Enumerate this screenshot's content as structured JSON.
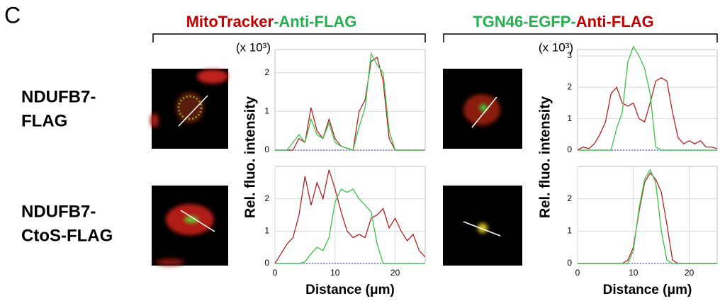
{
  "panel_label": "C",
  "groups": [
    {
      "title_parts": [
        {
          "text": "MitoTracker",
          "color": "#c00000"
        },
        {
          "text": "-Anti-FLAG",
          "color": "#22b14c"
        }
      ]
    },
    {
      "title_parts": [
        {
          "text": "TGN46-EGFP-",
          "color": "#22b14c"
        },
        {
          "text": "Anti-FLAG",
          "color": "#c00000"
        }
      ]
    }
  ],
  "rows": [
    [
      "NDUFB7-",
      "FLAG"
    ],
    [
      "NDUFB7-",
      "CtoS-FLAG"
    ]
  ],
  "y_label": "Rel. fluo. intensity",
  "chart_data": [
    {
      "type": "line",
      "y_unit": "(x 10³)",
      "xlim": [
        0,
        25
      ],
      "ylim": [
        0,
        2.6
      ],
      "yticks": [
        0,
        1,
        2
      ],
      "grid": true,
      "x": [
        0,
        1,
        2,
        3,
        4,
        5,
        6,
        7,
        8,
        9,
        10,
        11,
        12,
        13,
        14,
        15,
        16,
        17,
        18,
        19,
        20,
        21,
        22,
        23,
        24,
        25
      ],
      "series": [
        {
          "color": "#b22222",
          "values": [
            0,
            0,
            0,
            0,
            0.3,
            0.2,
            1.1,
            0.5,
            0.3,
            0.8,
            0.3,
            0.1,
            0.05,
            0,
            1.0,
            1.3,
            2.3,
            2.4,
            1.8,
            0.3,
            0,
            0,
            0,
            0,
            0,
            0
          ]
        },
        {
          "color": "#3cc24a",
          "values": [
            0,
            0,
            0,
            0.2,
            0.4,
            0.2,
            0.8,
            0.4,
            0.3,
            0.7,
            0.2,
            0.1,
            0.05,
            0,
            0.6,
            1.1,
            2.5,
            2.2,
            2.0,
            0.5,
            0,
            0,
            0,
            0,
            0,
            0
          ]
        }
      ]
    },
    {
      "type": "line",
      "y_unit": "(x 10³)",
      "xlim": [
        0,
        25
      ],
      "ylim": [
        0,
        3.2
      ],
      "yticks": [
        0,
        1,
        2,
        3
      ],
      "grid": true,
      "x": [
        0,
        1,
        2,
        3,
        4,
        5,
        6,
        7,
        8,
        9,
        10,
        11,
        12,
        13,
        14,
        15,
        16,
        17,
        18,
        19,
        20,
        21,
        22,
        23,
        24,
        25
      ],
      "series": [
        {
          "color": "#b22222",
          "values": [
            0,
            0.1,
            0.05,
            0.2,
            0.5,
            0.9,
            1.8,
            2.0,
            1.5,
            1.4,
            1.5,
            1.0,
            0.9,
            1.5,
            2.2,
            2.3,
            2.2,
            1.2,
            0.4,
            0.2,
            0.3,
            0.2,
            0.3,
            0.1,
            0.1,
            0.05
          ]
        },
        {
          "color": "#3cc24a",
          "values": [
            0,
            0,
            0,
            0,
            0,
            0,
            0,
            0.7,
            1.2,
            2.8,
            3.3,
            3.0,
            2.6,
            1.8,
            0.1,
            0,
            0,
            0,
            0,
            0,
            0,
            0,
            0,
            0,
            0,
            0
          ]
        }
      ]
    },
    {
      "type": "line",
      "xlabel": "Distance (μm)",
      "xlim": [
        0,
        25
      ],
      "ylim": [
        0,
        3.0
      ],
      "xticks": [
        0,
        10,
        20
      ],
      "yticks": [
        0,
        1,
        2
      ],
      "grid": true,
      "x": [
        0,
        1,
        2,
        3,
        4,
        5,
        6,
        7,
        8,
        9,
        10,
        11,
        12,
        13,
        14,
        15,
        16,
        17,
        18,
        19,
        20,
        21,
        22,
        23,
        24,
        25
      ],
      "series": [
        {
          "color": "#b22222",
          "values": [
            0,
            0.3,
            0.6,
            0.8,
            1.5,
            2.7,
            1.8,
            2.5,
            2.0,
            2.9,
            2.3,
            1.6,
            1.0,
            0.8,
            0.9,
            0.8,
            1.4,
            1.5,
            1.7,
            1.1,
            1.4,
            1.0,
            0.7,
            0.9,
            0.4,
            0.2
          ]
        },
        {
          "color": "#3cc24a",
          "values": [
            0,
            0,
            0,
            0,
            0,
            0.05,
            0.3,
            0.5,
            0.4,
            0.8,
            1.9,
            2.3,
            2.2,
            2.3,
            2.0,
            1.8,
            1.6,
            0.6,
            0,
            0,
            0,
            0,
            0,
            0,
            0,
            0
          ]
        }
      ]
    },
    {
      "type": "line",
      "xlabel": "Distance (μm)",
      "xlim": [
        0,
        25
      ],
      "ylim": [
        0,
        3.0
      ],
      "xticks": [
        0,
        10,
        20
      ],
      "yticks": [
        0,
        1,
        2
      ],
      "grid": true,
      "x": [
        0,
        1,
        2,
        3,
        4,
        5,
        6,
        7,
        8,
        9,
        10,
        11,
        12,
        13,
        14,
        15,
        16,
        17,
        18,
        19,
        20,
        21,
        22,
        23,
        24,
        25
      ],
      "series": [
        {
          "color": "#b22222",
          "values": [
            0,
            0,
            0,
            0,
            0,
            0,
            0,
            0,
            0,
            0.1,
            0.5,
            1.6,
            2.5,
            2.8,
            2.6,
            2.2,
            1.2,
            0.1,
            0,
            0,
            0,
            0,
            0,
            0,
            0,
            0
          ]
        },
        {
          "color": "#3cc24a",
          "values": [
            0,
            0,
            0,
            0,
            0,
            0,
            0,
            0,
            0,
            0,
            0.4,
            1.7,
            2.6,
            2.9,
            2.5,
            1.0,
            0.1,
            0,
            0,
            0,
            0,
            0,
            0,
            0,
            0,
            0
          ]
        }
      ]
    }
  ]
}
